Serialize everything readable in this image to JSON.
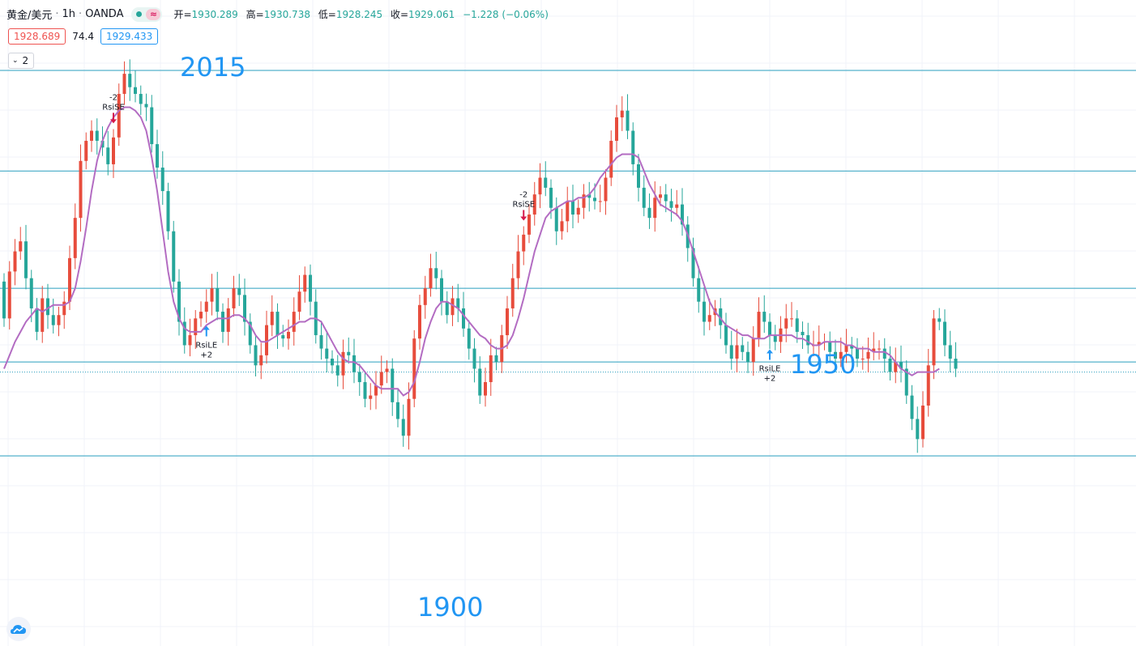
{
  "legend": {
    "symbol": "黄金/美元",
    "interval": "1h",
    "source": "OANDA",
    "separator": "·",
    "status_wave": "≈",
    "ohlc": {
      "open_label": "开=",
      "open": "1930.289",
      "high_label": "高=",
      "high": "1930.738",
      "low_label": "低=",
      "low": "1928.245",
      "close_label": "收=",
      "close": "1929.061",
      "change": "−1.228 (−0.06%)"
    }
  },
  "prices": {
    "bid": "1928.689",
    "spread": "74.4",
    "ask": "1929.433"
  },
  "indicator_toggle": {
    "chevron": "⌄",
    "count": "2"
  },
  "levels": [
    {
      "value": 2015,
      "label": "2015"
    },
    {
      "value": 1950,
      "label": "1950"
    },
    {
      "value": 1900,
      "label": "1900"
    }
  ],
  "colors": {
    "up": "#e74c3c",
    "down": "#26a69a",
    "ma": "#b36cc2",
    "level": "#2a9fbf",
    "label": "#2196f3",
    "signal_short": "#d6194b",
    "signal_long": "#2196f3"
  },
  "chart_data": {
    "type": "candlestick",
    "y_unit": "USD",
    "ylim": [
      1895,
      2018
    ],
    "horizontal_levels": [
      2015,
      1985,
      1950,
      1928,
      1900
    ],
    "current_price": 1925,
    "candles": [
      [
        1952,
        1941
      ],
      [
        1941,
        1955
      ],
      [
        1955,
        1961
      ],
      [
        1961,
        1964
      ],
      [
        1964,
        1953
      ],
      [
        1953,
        1944
      ],
      [
        1944,
        1937
      ],
      [
        1937,
        1947
      ],
      [
        1947,
        1942
      ],
      [
        1942,
        1939
      ],
      [
        1939,
        1942
      ],
      [
        1942,
        1946
      ],
      [
        1946,
        1959
      ],
      [
        1959,
        1971
      ],
      [
        1971,
        1988
      ],
      [
        1988,
        1994
      ],
      [
        1994,
        1997
      ],
      [
        1997,
        1994
      ],
      [
        1994,
        1992
      ],
      [
        1992,
        1987
      ],
      [
        1987,
        1995
      ],
      [
        1995,
        2008
      ],
      [
        2008,
        2014
      ],
      [
        2014,
        2010
      ],
      [
        2010,
        2008
      ],
      [
        2008,
        2005
      ],
      [
        2005,
        2004
      ],
      [
        2004,
        1993
      ],
      [
        1993,
        1986
      ],
      [
        1986,
        1979
      ],
      [
        1979,
        1967
      ],
      [
        1967,
        1952
      ],
      [
        1952,
        1940
      ],
      [
        1940,
        1933
      ],
      [
        1933,
        1936
      ],
      [
        1936,
        1941
      ],
      [
        1941,
        1943
      ],
      [
        1943,
        1946
      ],
      [
        1946,
        1950
      ],
      [
        1950,
        1943
      ],
      [
        1943,
        1937
      ],
      [
        1937,
        1944
      ],
      [
        1944,
        1950
      ],
      [
        1950,
        1948
      ],
      [
        1948,
        1940
      ],
      [
        1940,
        1933
      ],
      [
        1933,
        1927
      ],
      [
        1927,
        1930
      ],
      [
        1930,
        1939
      ],
      [
        1939,
        1943
      ],
      [
        1943,
        1936
      ],
      [
        1936,
        1935
      ],
      [
        1935,
        1937
      ],
      [
        1937,
        1943
      ],
      [
        1943,
        1949
      ],
      [
        1949,
        1954
      ],
      [
        1954,
        1946
      ],
      [
        1946,
        1936
      ],
      [
        1936,
        1932
      ],
      [
        1932,
        1929
      ],
      [
        1929,
        1927
      ],
      [
        1927,
        1924
      ],
      [
        1924,
        1931
      ],
      [
        1931,
        1930
      ],
      [
        1930,
        1925
      ],
      [
        1925,
        1922
      ],
      [
        1922,
        1917
      ],
      [
        1917,
        1918
      ],
      [
        1918,
        1921
      ],
      [
        1921,
        1925
      ],
      [
        1925,
        1926
      ],
      [
        1926,
        1916
      ],
      [
        1916,
        1911
      ],
      [
        1911,
        1906
      ],
      [
        1906,
        1917
      ],
      [
        1917,
        1935
      ],
      [
        1935,
        1945
      ],
      [
        1945,
        1950
      ],
      [
        1950,
        1956
      ],
      [
        1956,
        1953
      ],
      [
        1953,
        1946
      ],
      [
        1946,
        1942
      ],
      [
        1942,
        1947
      ],
      [
        1947,
        1944
      ],
      [
        1944,
        1938
      ],
      [
        1938,
        1932
      ],
      [
        1932,
        1926
      ],
      [
        1926,
        1918
      ],
      [
        1918,
        1922
      ],
      [
        1922,
        1930
      ],
      [
        1930,
        1928
      ],
      [
        1928,
        1936
      ],
      [
        1936,
        1944
      ],
      [
        1944,
        1953
      ],
      [
        1953,
        1961
      ],
      [
        1961,
        1966
      ],
      [
        1966,
        1972
      ],
      [
        1972,
        1978
      ],
      [
        1978,
        1983
      ],
      [
        1983,
        1980
      ],
      [
        1980,
        1974
      ],
      [
        1974,
        1967
      ],
      [
        1967,
        1970
      ],
      [
        1970,
        1976
      ],
      [
        1976,
        1972
      ],
      [
        1972,
        1974
      ],
      [
        1974,
        1978
      ],
      [
        1978,
        1977
      ],
      [
        1977,
        1976
      ],
      [
        1976,
        1976
      ],
      [
        1976,
        1983
      ],
      [
        1983,
        1994
      ],
      [
        1994,
        2001
      ],
      [
        2001,
        2003
      ],
      [
        2003,
        1997
      ],
      [
        1997,
        1987
      ],
      [
        1987,
        1980
      ],
      [
        1980,
        1974
      ],
      [
        1974,
        1971
      ],
      [
        1971,
        1977
      ],
      [
        1977,
        1978
      ],
      [
        1978,
        1976
      ],
      [
        1976,
        1974
      ],
      [
        1974,
        1975
      ],
      [
        1975,
        1969
      ],
      [
        1969,
        1962
      ],
      [
        1962,
        1953
      ],
      [
        1953,
        1946
      ],
      [
        1946,
        1940
      ],
      [
        1940,
        1942
      ],
      [
        1942,
        1944
      ],
      [
        1944,
        1939
      ],
      [
        1939,
        1933
      ],
      [
        1933,
        1929
      ],
      [
        1929,
        1933
      ],
      [
        1933,
        1931
      ],
      [
        1931,
        1928
      ],
      [
        1928,
        1935
      ],
      [
        1935,
        1943
      ],
      [
        1943,
        1940
      ],
      [
        1940,
        1936
      ],
      [
        1936,
        1934
      ],
      [
        1934,
        1938
      ],
      [
        1938,
        1941
      ],
      [
        1941,
        1941
      ],
      [
        1941,
        1937
      ],
      [
        1937,
        1936
      ],
      [
        1936,
        1933
      ],
      [
        1933,
        1933
      ],
      [
        1933,
        1934
      ],
      [
        1934,
        1934
      ],
      [
        1934,
        1931
      ],
      [
        1931,
        1929
      ],
      [
        1929,
        1931
      ],
      [
        1931,
        1933
      ],
      [
        1933,
        1932
      ],
      [
        1932,
        1929
      ],
      [
        1929,
        1929
      ],
      [
        1929,
        1931
      ],
      [
        1931,
        1932
      ],
      [
        1932,
        1932
      ],
      [
        1932,
        1929
      ],
      [
        1929,
        1925
      ],
      [
        1925,
        1928
      ],
      [
        1928,
        1926
      ],
      [
        1926,
        1918
      ],
      [
        1918,
        1911
      ],
      [
        1911,
        1905
      ],
      [
        1905,
        1915
      ],
      [
        1915,
        1927
      ],
      [
        1927,
        1941
      ],
      [
        1941,
        1940
      ],
      [
        1940,
        1933
      ],
      [
        1933,
        1929
      ],
      [
        1929,
        1926
      ]
    ],
    "ma": [
      1926,
      1930,
      1934,
      1937,
      1940,
      1942,
      1944,
      1943,
      1944,
      1945,
      1945,
      1945,
      1946,
      1950,
      1958,
      1968,
      1979,
      1988,
      1994,
      1998,
      2001,
      2003,
      2004,
      2004,
      2003,
      2001,
      1997,
      1989,
      1979,
      1967,
      1955,
      1946,
      1941,
      1938,
      1937,
      1937,
      1937,
      1939,
      1940,
      1941,
      1941,
      1941,
      1942,
      1942,
      1941,
      1939,
      1936,
      1934,
      1934,
      1935,
      1936,
      1937,
      1938,
      1939,
      1940,
      1940,
      1941,
      1941,
      1940,
      1937,
      1934,
      1931,
      1929,
      1928,
      1928,
      1927,
      1925,
      1923,
      1921,
      1920,
      1920,
      1920,
      1920,
      1918,
      1919,
      1922,
      1928,
      1935,
      1940,
      1944,
      1946,
      1946,
      1945,
      1944,
      1942,
      1940,
      1938,
      1936,
      1935,
      1933,
      1932,
      1932,
      1933,
      1936,
      1941,
      1947,
      1954,
      1961,
      1966,
      1971,
      1973,
      1974,
      1975,
      1976,
      1976,
      1977,
      1977,
      1978,
      1980,
      1983,
      1985,
      1987,
      1989,
      1990,
      1990,
      1990,
      1989,
      1985,
      1981,
      1978,
      1975,
      1974,
      1973,
      1972,
      1970,
      1966,
      1961,
      1956,
      1951,
      1946,
      1943,
      1941,
      1939,
      1938,
      1937,
      1936,
      1936,
      1935,
      1935,
      1935,
      1936,
      1936,
      1936,
      1936,
      1936,
      1935,
      1935,
      1934,
      1933,
      1933,
      1934,
      1934,
      1934,
      1934,
      1933,
      1933,
      1932,
      1932,
      1932,
      1931,
      1931,
      1931,
      1930,
      1928,
      1926,
      1925,
      1924,
      1925,
      1925,
      1925,
      1925,
      1926
    ],
    "signals": [
      {
        "label": "RsiSE",
        "qty": "-2",
        "direction": "short",
        "index": 20
      },
      {
        "label": "RsiLE",
        "qty": "+2",
        "direction": "long",
        "index": 37
      },
      {
        "label": "RsiSE",
        "qty": "-2",
        "direction": "short",
        "index": 95
      },
      {
        "label": "RsiLE",
        "qty": "+2",
        "direction": "long",
        "index": 140
      }
    ]
  }
}
